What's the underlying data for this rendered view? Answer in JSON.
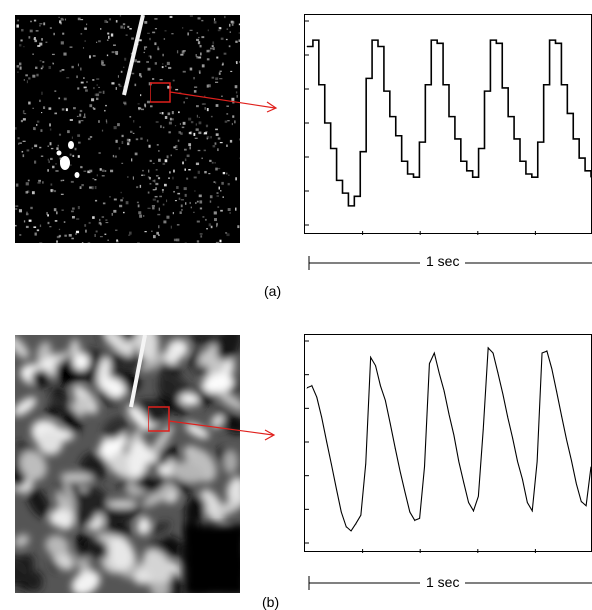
{
  "panels": [
    {
      "id": "a",
      "label": "(a)",
      "scale_label": "1 sec"
    },
    {
      "id": "b",
      "label": "(b)",
      "scale_label": "1 sec"
    }
  ],
  "colors": {
    "roi": "#e0201c",
    "arrow": "#e0201c",
    "trace": "#000000"
  },
  "chart_data": [
    {
      "type": "line",
      "title": "",
      "xlabel": "",
      "ylabel": "",
      "grid": false,
      "series": [
        {
          "values": [
            5.6,
            5.8,
            4.4,
            3.2,
            2.4,
            1.4,
            1.0,
            0.6,
            0.9,
            2.3,
            4.6,
            5.8,
            5.6,
            4.2,
            3.4,
            2.8,
            2.0,
            1.6,
            1.5,
            2.6,
            4.4,
            5.8,
            5.7,
            4.4,
            3.4,
            2.7,
            2.0,
            1.7,
            1.5,
            2.4,
            4.2,
            5.8,
            5.7,
            4.3,
            3.4,
            2.7,
            2.0,
            1.6,
            1.5,
            2.6,
            4.4,
            5.8,
            5.7,
            4.4,
            3.5,
            2.7,
            2.1,
            1.7,
            1.5
          ]
        }
      ]
    },
    {
      "type": "line",
      "title": "",
      "xlabel": "",
      "ylabel": "",
      "grid": false,
      "series": [
        {
          "values": [
            4.9,
            5.0,
            4.6,
            4.0,
            3.2,
            2.5,
            1.7,
            1.0,
            0.5,
            0.4,
            0.6,
            0.9,
            2.5,
            5.9,
            5.6,
            5.0,
            4.5,
            3.8,
            3.0,
            2.3,
            1.6,
            1.0,
            0.7,
            0.8,
            2.4,
            5.7,
            6.0,
            5.4,
            4.8,
            4.1,
            3.4,
            2.6,
            1.9,
            1.3,
            1.0,
            1.5,
            3.6,
            6.2,
            6.0,
            5.4,
            4.7,
            4.0,
            3.3,
            2.6,
            2.0,
            1.3,
            1.0,
            2.6,
            6.0,
            6.1,
            5.5,
            4.8,
            4.0,
            3.3,
            2.6,
            1.9,
            1.3,
            1.2,
            2.4
          ]
        }
      ]
    }
  ]
}
